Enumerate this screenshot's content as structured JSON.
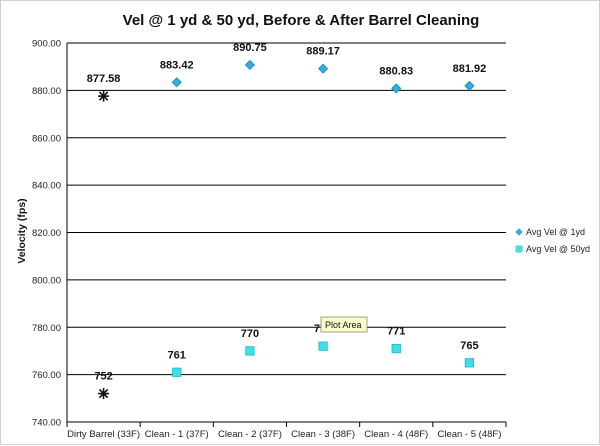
{
  "chart_data": {
    "type": "scatter",
    "title": "Vel @ 1 yd & 50 yd, Before & After Barrel Cleaning",
    "ylabel": "Velocity (fps)",
    "xlabel": "",
    "ylim": [
      740,
      900
    ],
    "y_ticks": [
      "740.00",
      "760.00",
      "780.00",
      "800.00",
      "820.00",
      "840.00",
      "860.00",
      "880.00",
      "900.00"
    ],
    "y_tick_values": [
      740,
      760,
      780,
      800,
      820,
      840,
      860,
      880,
      900
    ],
    "categories": [
      "Dirty Barrel (33F)",
      "Clean - 1 (37F)",
      "Clean - 2 (37F)",
      "Clean - 3 (38F)",
      "Clean - 4 (48F)",
      "Clean - 5 (48F)"
    ],
    "grid": true,
    "legend_position": "right",
    "series": [
      {
        "name": "Avg Vel @ 1yd",
        "color": "#33aee0",
        "marker": "diamond",
        "values": [
          877.58,
          883.42,
          890.75,
          889.17,
          880.83,
          881.92
        ],
        "labels": [
          "877.58",
          "883.42",
          "890.75",
          "889.17",
          "880.83",
          "881.92"
        ]
      },
      {
        "name": "Avg Vel @ 50yd",
        "color": "#3ee0e6",
        "marker": "square",
        "values": [
          752,
          761,
          770,
          772,
          771,
          765
        ],
        "labels": [
          "752",
          "761",
          "770",
          "772",
          "771",
          "765"
        ]
      }
    ],
    "first_point_marker": "asterisk",
    "tooltip": "Plot Area"
  }
}
